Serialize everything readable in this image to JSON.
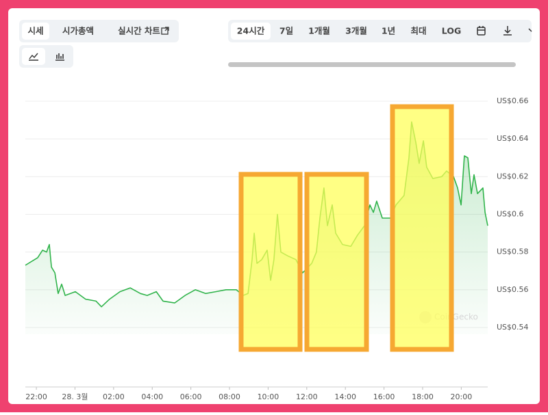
{
  "view_tabs": [
    "시세",
    "시가총액",
    "실시간 차트"
  ],
  "range_tabs": [
    "24시간",
    "7일",
    "1개월",
    "3개월",
    "1년",
    "최대",
    "LOG"
  ],
  "chart_data": {
    "type": "line",
    "watermark": "CoinGecko",
    "color": "#2fb34a",
    "grid": true,
    "xlim": [
      -0.57,
      23.37
    ],
    "ylim": [
      0.54,
      0.66
    ],
    "yticks": [
      {
        "value": 0.66,
        "label": "US$0.66"
      },
      {
        "value": 0.64,
        "label": "US$0.64"
      },
      {
        "value": 0.62,
        "label": "US$0.62"
      },
      {
        "value": 0.6,
        "label": "US$0.6"
      },
      {
        "value": 0.58,
        "label": "US$0.58"
      },
      {
        "value": 0.56,
        "label": "US$0.56"
      },
      {
        "value": 0.54,
        "label": "US$0.54"
      }
    ],
    "xticks": [
      {
        "value": 0,
        "label": "22:00"
      },
      {
        "value": 2,
        "label": "28. 3월"
      },
      {
        "value": 4,
        "label": "02:00"
      },
      {
        "value": 6,
        "label": "04:00"
      },
      {
        "value": 8,
        "label": "06:00"
      },
      {
        "value": 10,
        "label": "08:00"
      },
      {
        "value": 12,
        "label": "10:00"
      },
      {
        "value": 14,
        "label": "12:00"
      },
      {
        "value": 16,
        "label": "14:00"
      },
      {
        "value": 18,
        "label": "16:00"
      },
      {
        "value": 20,
        "label": "18:00"
      },
      {
        "value": 22,
        "label": "20:00"
      }
    ],
    "x": [
      -0.57,
      0.07,
      0.32,
      0.53,
      0.67,
      0.78,
      0.96,
      1.13,
      1.31,
      1.49,
      2.02,
      2.55,
      3.09,
      3.37,
      3.79,
      4.33,
      4.86,
      5.39,
      5.74,
      6.21,
      6.56,
      7.16,
      7.7,
      8.23,
      8.76,
      9.29,
      9.82,
      10.35,
      10.71,
      10.96,
      11.17,
      11.28,
      11.42,
      11.67,
      11.95,
      12.13,
      12.3,
      12.48,
      12.66,
      13.01,
      13.44,
      13.79,
      14.26,
      14.5,
      14.68,
      14.89,
      15.07,
      15.32,
      15.5,
      15.85,
      16.28,
      16.63,
      16.99,
      17.27,
      17.45,
      17.62,
      17.91,
      18.33,
      18.62,
      19.04,
      19.29,
      19.43,
      19.65,
      19.82,
      20.04,
      20.21,
      20.53,
      20.99,
      21.24,
      21.6,
      21.81,
      21.99,
      22.16,
      22.34,
      22.52,
      22.66,
      22.84,
      23.12,
      23.23,
      23.37
    ],
    "values": [
      0.573,
      0.577,
      0.581,
      0.58,
      0.584,
      0.572,
      0.569,
      0.558,
      0.563,
      0.557,
      0.559,
      0.555,
      0.554,
      0.551,
      0.555,
      0.559,
      0.561,
      0.558,
      0.557,
      0.559,
      0.554,
      0.553,
      0.557,
      0.56,
      0.558,
      0.559,
      0.56,
      0.56,
      0.557,
      0.558,
      0.576,
      0.59,
      0.574,
      0.576,
      0.581,
      0.565,
      0.576,
      0.6,
      0.58,
      0.578,
      0.576,
      0.569,
      0.574,
      0.58,
      0.598,
      0.614,
      0.594,
      0.605,
      0.59,
      0.584,
      0.583,
      0.589,
      0.594,
      0.605,
      0.601,
      0.607,
      0.598,
      0.598,
      0.605,
      0.61,
      0.63,
      0.649,
      0.638,
      0.627,
      0.639,
      0.625,
      0.619,
      0.62,
      0.623,
      0.62,
      0.614,
      0.605,
      0.631,
      0.63,
      0.611,
      0.621,
      0.611,
      0.614,
      0.601,
      0.594
    ]
  }
}
